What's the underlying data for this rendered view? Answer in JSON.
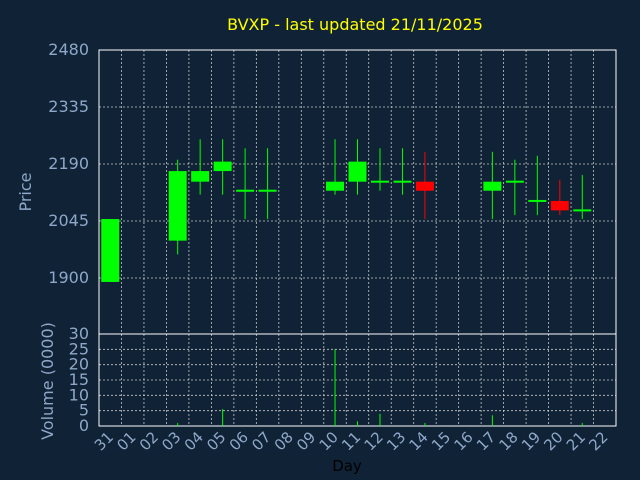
{
  "chart_data": {
    "type": "candlestick",
    "title": "BVXP - last updated 21/11/2025",
    "price_panel": {
      "ylabel": "Price",
      "ylim": [
        1900,
        2480
      ],
      "yticks": [
        "2480",
        "2335",
        "2190",
        "2045",
        "1900"
      ]
    },
    "volume_panel": {
      "ylabel": "Volume (0000)",
      "ylim": [
        0,
        30
      ],
      "yticks": [
        "30",
        "25",
        "20",
        "15",
        "10",
        "5",
        "0"
      ]
    },
    "xlabel": "Day",
    "days": [
      "31",
      "01",
      "02",
      "03",
      "04",
      "05",
      "06",
      "07",
      "08",
      "09",
      "10",
      "11",
      "12",
      "13",
      "14",
      "15",
      "16",
      "17",
      "18",
      "19",
      "20",
      "21",
      "22"
    ],
    "candles": [
      {
        "day": "31",
        "open": 1890,
        "high": 2050,
        "low": 1890,
        "close": 2050
      },
      {
        "day": "03",
        "open": 1995,
        "high": 2201,
        "low": 1960,
        "close": 2172
      },
      {
        "day": "04",
        "open": 2145,
        "high": 2253,
        "low": 2112,
        "close": 2172
      },
      {
        "day": "05",
        "open": 2172,
        "high": 2253,
        "low": 2112,
        "close": 2196
      },
      {
        "day": "06",
        "open": 2122,
        "high": 2230,
        "low": 2050,
        "close": 2122
      },
      {
        "day": "07",
        "open": 2122,
        "high": 2230,
        "low": 2050,
        "close": 2122
      },
      {
        "day": "10",
        "open": 2122,
        "high": 2253,
        "low": 2112,
        "close": 2145
      },
      {
        "day": "11",
        "open": 2145,
        "high": 2253,
        "low": 2112,
        "close": 2196
      },
      {
        "day": "12",
        "open": 2145,
        "high": 2230,
        "low": 2122,
        "close": 2145
      },
      {
        "day": "13",
        "open": 2145,
        "high": 2230,
        "low": 2112,
        "close": 2145
      },
      {
        "day": "14",
        "open": 2145,
        "high": 2221,
        "low": 2050,
        "close": 2122
      },
      {
        "day": "17",
        "open": 2122,
        "high": 2221,
        "low": 2050,
        "close": 2145
      },
      {
        "day": "18",
        "open": 2145,
        "high": 2201,
        "low": 2060,
        "close": 2145
      },
      {
        "day": "19",
        "open": 2096,
        "high": 2211,
        "low": 2060,
        "close": 2096
      },
      {
        "day": "20",
        "open": 2096,
        "high": 2150,
        "low": 2060,
        "close": 2072
      },
      {
        "day": "21",
        "open": 2072,
        "high": 2162,
        "low": 2050,
        "close": 2072
      }
    ],
    "volumes": [
      {
        "day": "03",
        "value": 1
      },
      {
        "day": "05",
        "value": 5.5
      },
      {
        "day": "10",
        "value": 25
      },
      {
        "day": "11",
        "value": 1.5
      },
      {
        "day": "12",
        "value": 4
      },
      {
        "day": "14",
        "value": 1
      },
      {
        "day": "17",
        "value": 3.5
      },
      {
        "day": "21",
        "value": 1
      }
    ],
    "grid": true,
    "colors": {
      "background": "#0f2236",
      "up": "#00ff00",
      "down": "#ff0000",
      "title": "#ffff00",
      "labels": "#8fa8c8",
      "grid": "#c8c8c8"
    }
  }
}
